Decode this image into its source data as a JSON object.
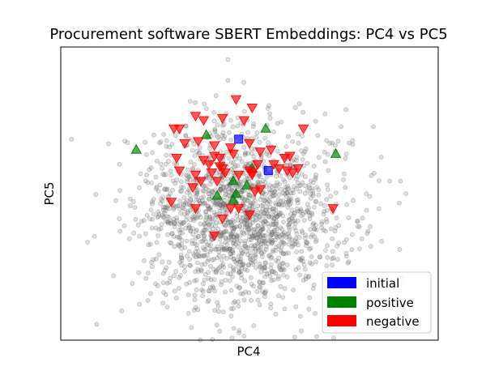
{
  "chart_data": {
    "type": "scatter",
    "title": "Procurement software SBERT Embeddings: PC4 vs PC5",
    "xlabel": "PC4",
    "ylabel": "PC5",
    "xlim": [
      -3.5,
      3.5
    ],
    "ylim": [
      -3.5,
      3.5
    ],
    "grid": false,
    "ticks_shown": false,
    "legend_placement": "bottom-right",
    "background": {
      "name": "",
      "color": "#808080",
      "alpha": 0.25,
      "marker": "circle",
      "approx_point_count": 1700,
      "distribution": {
        "center": [
          -0.15,
          -0.55
        ],
        "spread": [
          0.95,
          1.05
        ],
        "seed": 7
      },
      "sample_points": [
        [
          -3.3,
          1.3
        ],
        [
          -1.1,
          2.2
        ],
        [
          -0.4,
          2.7
        ],
        [
          1.4,
          1.9
        ],
        [
          1.7,
          1.6
        ],
        [
          2.3,
          1.6
        ],
        [
          2.6,
          0.3
        ],
        [
          2.8,
          0.3
        ],
        [
          2.9,
          0.0
        ],
        [
          1.8,
          -1.1
        ],
        [
          1.8,
          -1.5
        ],
        [
          2.2,
          -0.9
        ],
        [
          -0.1,
          -3.4
        ],
        [
          -0.6,
          -2.6
        ],
        [
          -1.7,
          -2.2
        ],
        [
          -2.4,
          -0.9
        ],
        [
          -0.4,
          3.2
        ]
      ]
    },
    "series": [
      {
        "name": "initial",
        "color": "#0000ff",
        "marker": "square",
        "points": [
          [
            -0.2,
            1.3
          ],
          [
            0.35,
            0.55
          ]
        ]
      },
      {
        "name": "positive",
        "color": "#008000",
        "marker": "triangle-up",
        "points": [
          [
            -2.1,
            1.05
          ],
          [
            -0.8,
            1.4
          ],
          [
            0.3,
            1.55
          ],
          [
            1.6,
            0.95
          ],
          [
            0.05,
            0.6
          ],
          [
            -0.3,
            0.3
          ],
          [
            -0.6,
            -0.05
          ],
          [
            -0.05,
            0.2
          ],
          [
            -0.25,
            0.0
          ],
          [
            -0.3,
            -0.15
          ]
        ]
      },
      {
        "name": "negative",
        "color": "#ff0000",
        "marker": "triangle-down",
        "points": [
          [
            -0.25,
            2.25
          ],
          [
            0.05,
            2.05
          ],
          [
            -0.1,
            1.75
          ],
          [
            -0.85,
            1.75
          ],
          [
            -1.0,
            1.85
          ],
          [
            -1.4,
            1.55
          ],
          [
            -1.3,
            1.55
          ],
          [
            -0.5,
            1.8
          ],
          [
            1.0,
            1.55
          ],
          [
            -1.2,
            1.2
          ],
          [
            -0.65,
            1.15
          ],
          [
            -0.95,
            1.25
          ],
          [
            -0.35,
            1.1
          ],
          [
            0.0,
            1.2
          ],
          [
            -0.65,
            0.9
          ],
          [
            -0.55,
            0.85
          ],
          [
            -0.3,
            0.95
          ],
          [
            -0.85,
            0.8
          ],
          [
            -1.35,
            0.85
          ],
          [
            -0.75,
            0.7
          ],
          [
            -0.55,
            0.65
          ],
          [
            -0.5,
            0.6
          ],
          [
            -1.3,
            0.55
          ],
          [
            -1.0,
            0.45
          ],
          [
            -0.7,
            0.5
          ],
          [
            -0.45,
            0.5
          ],
          [
            -0.9,
            0.3
          ],
          [
            -1.05,
            0.15
          ],
          [
            -0.6,
            0.3
          ],
          [
            0.05,
            0.5
          ],
          [
            0.15,
            0.7
          ],
          [
            0.2,
            1.0
          ],
          [
            0.4,
            1.05
          ],
          [
            0.65,
            0.85
          ],
          [
            0.75,
            0.9
          ],
          [
            0.45,
            0.7
          ],
          [
            0.55,
            0.6
          ],
          [
            0.7,
            0.55
          ],
          [
            0.9,
            0.6
          ],
          [
            0.8,
            0.5
          ],
          [
            -0.2,
            0.45
          ],
          [
            0.2,
            0.1
          ],
          [
            0.1,
            0.05
          ],
          [
            -1.45,
            -0.2
          ],
          [
            -1.0,
            -0.35
          ],
          [
            -0.35,
            -0.35
          ],
          [
            -0.2,
            -0.35
          ],
          [
            0.0,
            -0.5
          ],
          [
            -0.5,
            -0.6
          ],
          [
            0.0,
            0.55
          ],
          [
            1.55,
            -0.35
          ],
          [
            -0.65,
            -1.0
          ],
          [
            0.05,
            0.45
          ]
        ]
      }
    ]
  }
}
